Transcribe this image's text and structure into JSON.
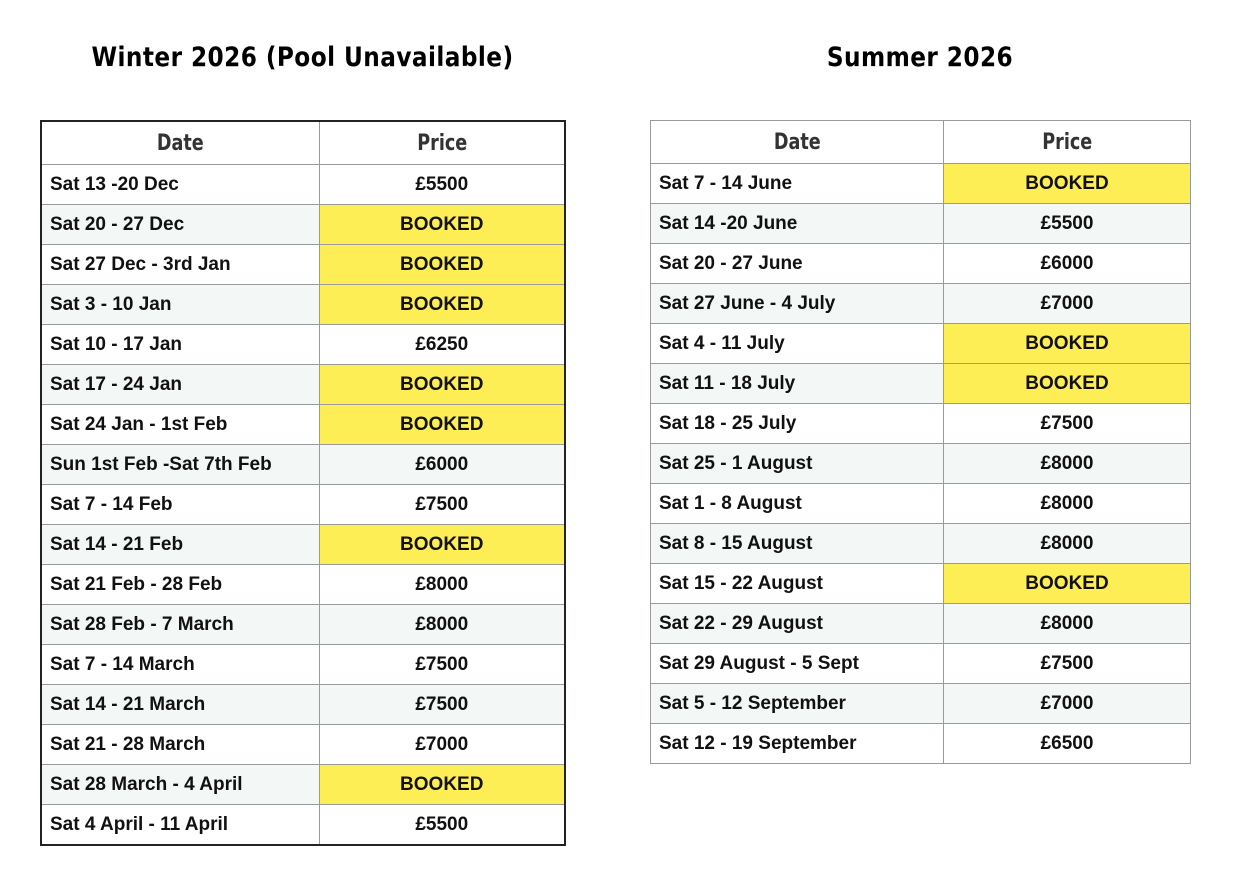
{
  "winter": {
    "title": "Winter 2026 (Pool Unavailable)",
    "headers": [
      "Date",
      "Price"
    ],
    "rows": [
      {
        "date": "Sat 13 -20 Dec",
        "price": "£5500"
      },
      {
        "date": "Sat 20 - 27 Dec",
        "price": "BOOKED"
      },
      {
        "date": "Sat 27 Dec - 3rd Jan",
        "price": "BOOKED"
      },
      {
        "date": "Sat 3 - 10 Jan",
        "price": "BOOKED"
      },
      {
        "date": "Sat 10 - 17 Jan",
        "price": "£6250"
      },
      {
        "date": "Sat 17 - 24 Jan",
        "price": "BOOKED"
      },
      {
        "date": "Sat 24 Jan - 1st Feb",
        "price": "BOOKED"
      },
      {
        "date": "Sun 1st Feb -Sat 7th Feb",
        "price": "£6000"
      },
      {
        "date": "Sat 7 - 14 Feb",
        "price": "£7500"
      },
      {
        "date": "Sat 14 - 21 Feb",
        "price": "BOOKED"
      },
      {
        "date": "Sat 21 Feb - 28 Feb",
        "price": "£8000"
      },
      {
        "date": "Sat 28 Feb  - 7 March",
        "price": "£8000"
      },
      {
        "date": "Sat 7 - 14 March",
        "price": "£7500"
      },
      {
        "date": "Sat 14 - 21 March",
        "price": "£7500"
      },
      {
        "date": "Sat 21 - 28 March",
        "price": "£7000"
      },
      {
        "date": "Sat 28 March - 4 April",
        "price": "BOOKED"
      },
      {
        "date": "Sat 4 April - 11 April",
        "price": "£5500"
      }
    ]
  },
  "summer": {
    "title": "Summer 2026",
    "headers": [
      "Date",
      "Price"
    ],
    "rows": [
      {
        "date": "Sat 7 - 14 June",
        "price": "BOOKED"
      },
      {
        "date": "Sat 14 -20 June",
        "price": "£5500"
      },
      {
        "date": "Sat 20 - 27 June",
        "price": "£6000"
      },
      {
        "date": "Sat 27 June - 4 July",
        "price": "£7000"
      },
      {
        "date": "Sat 4 - 11 July",
        "price": "BOOKED"
      },
      {
        "date": "Sat 11 - 18 July",
        "price": "BOOKED"
      },
      {
        "date": "Sat 18 - 25 July",
        "price": "£7500"
      },
      {
        "date": "Sat 25 - 1 August",
        "price": "£8000"
      },
      {
        "date": "Sat 1 - 8 August",
        "price": "£8000"
      },
      {
        "date": "Sat 8 - 15 August",
        "price": "£8000"
      },
      {
        "date": "Sat 15 - 22 August",
        "price": "BOOKED"
      },
      {
        "date": "Sat 22 - 29 August",
        "price": "£8000"
      },
      {
        "date": "Sat 29 August - 5 Sept",
        "price": "£7500"
      },
      {
        "date": "Sat 5  - 12 September",
        "price": "£7000"
      },
      {
        "date": "Sat 12 - 19 September",
        "price": "£6500"
      }
    ]
  },
  "colors": {
    "booked": "#fdee55",
    "stripe": "#f3f7f6"
  }
}
